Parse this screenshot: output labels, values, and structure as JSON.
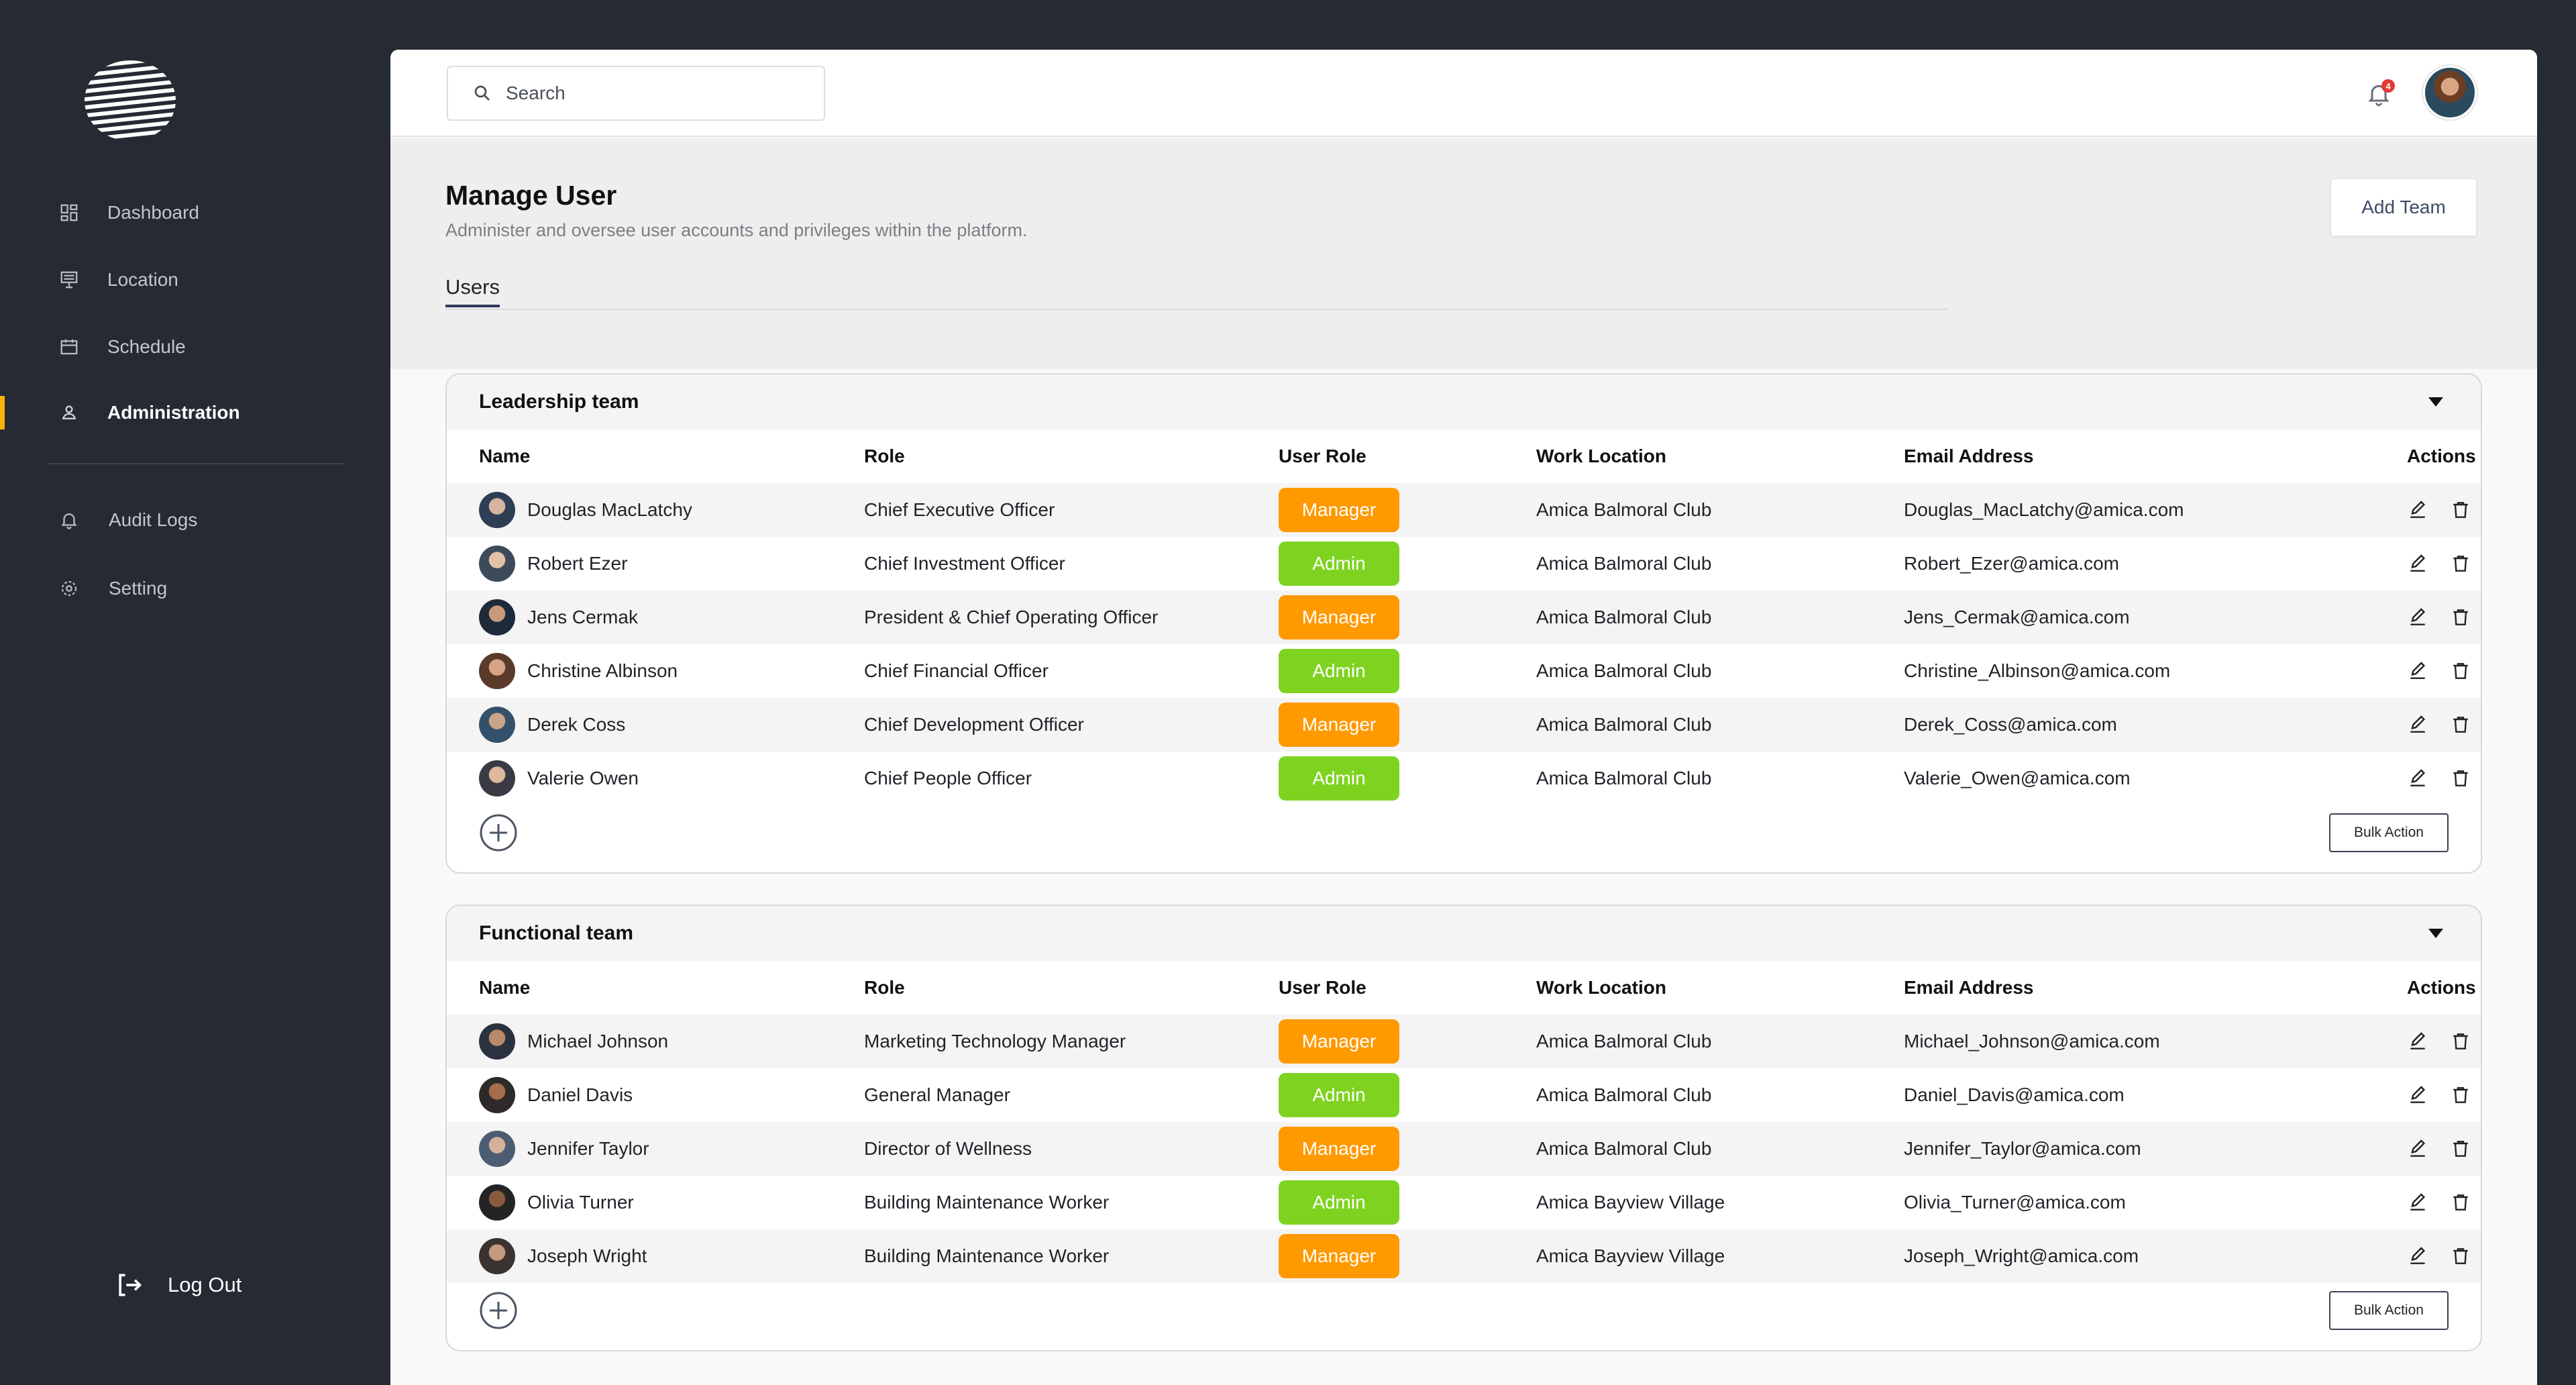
{
  "sidebar": {
    "items": [
      {
        "label": "Dashboard",
        "icon": "dashboard-icon"
      },
      {
        "label": "Location",
        "icon": "location-icon"
      },
      {
        "label": "Schedule",
        "icon": "schedule-icon"
      },
      {
        "label": "Administration",
        "icon": "administration-icon",
        "active": true
      },
      {
        "label": "Audit Logs",
        "icon": "bell-icon"
      },
      {
        "label": "Setting",
        "icon": "gear-icon"
      }
    ],
    "logout_label": "Log Out",
    "accent": "#f5b400"
  },
  "topbar": {
    "search_placeholder": "Search",
    "notification_count": "4"
  },
  "page": {
    "title": "Manage User",
    "subtitle": "Administer and oversee user accounts and privileges within the platform.",
    "add_team_label": "Add Team",
    "tab_users": "Users"
  },
  "columns": {
    "name": "Name",
    "role": "Role",
    "user_role": "User Role",
    "work_location": "Work Location",
    "email": "Email Address",
    "actions": "Actions"
  },
  "colors": {
    "manager": "#ff9900",
    "admin": "#7ed321"
  },
  "teams": [
    {
      "title": "Leadership team",
      "bulk_label": "Bulk Action",
      "users": [
        {
          "name": "Douglas MacLatchy",
          "role": "Chief Executive Officer",
          "user_role": "Manager",
          "location": "Amica Balmoral Club",
          "email": "Douglas_MacLatchy@amica.com"
        },
        {
          "name": "Robert Ezer",
          "role": "Chief Investment Officer",
          "user_role": "Admin",
          "location": "Amica Balmoral Club",
          "email": "Robert_Ezer@amica.com"
        },
        {
          "name": "Jens Cermak",
          "role": "President & Chief Operating Officer",
          "user_role": "Manager",
          "location": "Amica Balmoral Club",
          "email": "Jens_Cermak@amica.com"
        },
        {
          "name": "Christine Albinson",
          "role": "Chief Financial Officer",
          "user_role": "Admin",
          "location": "Amica Balmoral Club",
          "email": "Christine_Albinson@amica.com"
        },
        {
          "name": "Derek Coss",
          "role": "Chief Development Officer",
          "user_role": "Manager",
          "location": "Amica Balmoral Club",
          "email": "Derek_Coss@amica.com"
        },
        {
          "name": "Valerie Owen",
          "role": "Chief People Officer",
          "user_role": "Admin",
          "location": "Amica Balmoral Club",
          "email": "Valerie_Owen@amica.com"
        }
      ]
    },
    {
      "title": "Functional team",
      "bulk_label": "Bulk Action",
      "users": [
        {
          "name": "Michael Johnson",
          "role": "Marketing Technology Manager",
          "user_role": "Manager",
          "location": "Amica Balmoral Club",
          "email": "Michael_Johnson@amica.com"
        },
        {
          "name": "Daniel Davis",
          "role": "General Manager",
          "user_role": "Admin",
          "location": "Amica Balmoral Club",
          "email": "Daniel_Davis@amica.com"
        },
        {
          "name": "Jennifer Taylor",
          "role": "Director of Wellness",
          "user_role": "Manager",
          "location": "Amica Balmoral Club",
          "email": "Jennifer_Taylor@amica.com"
        },
        {
          "name": "Olivia Turner",
          "role": "Building Maintenance Worker",
          "user_role": "Admin",
          "location": "Amica Bayview Village",
          "email": "Olivia_Turner@amica.com"
        },
        {
          "name": "Joseph Wright",
          "role": "Building Maintenance Worker",
          "user_role": "Manager",
          "location": "Amica Bayview Village",
          "email": "Joseph_Wright@amica.com"
        }
      ]
    }
  ]
}
